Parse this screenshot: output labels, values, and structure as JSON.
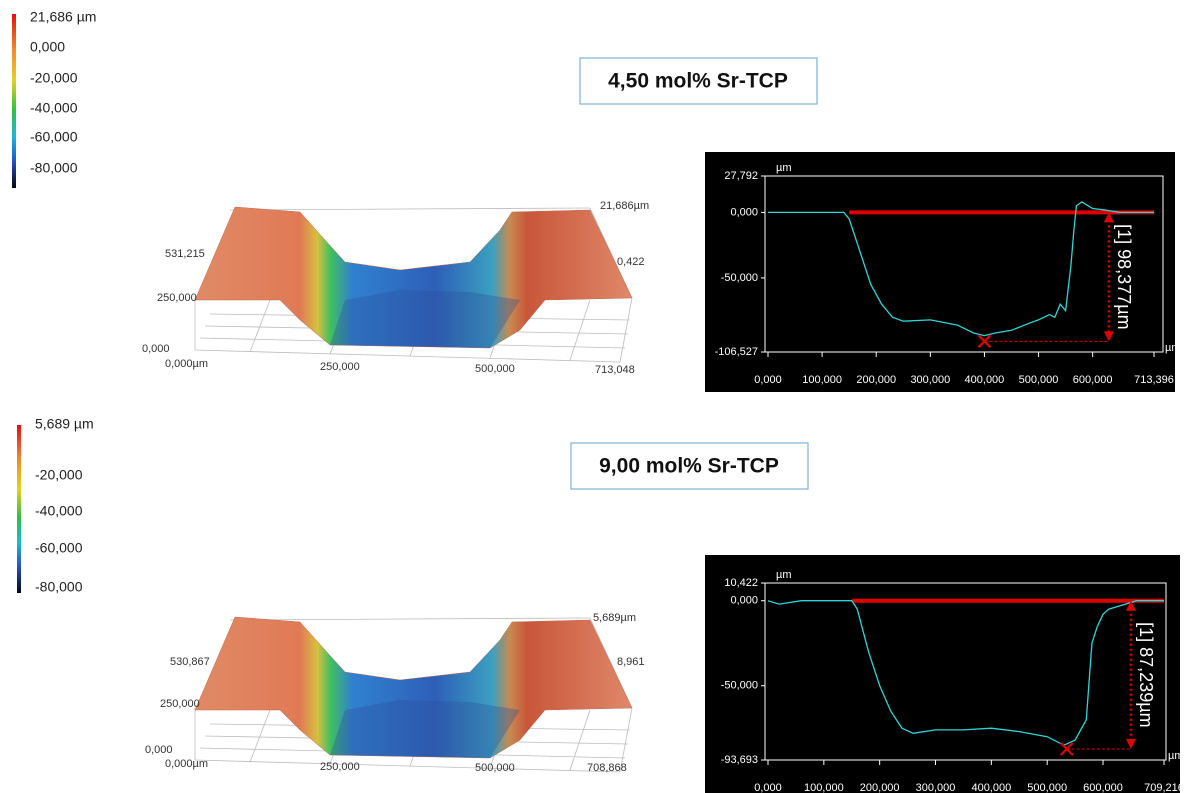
{
  "panels": [
    {
      "title": "4,50 mol% Sr-TCP",
      "colorbar": [
        "21,686 µm",
        "0,000",
        "-20,000",
        "-40,000",
        "-60,000",
        "-80,000"
      ],
      "surface_labels": [
        "531,215",
        "250,000",
        "0,000",
        "0,000µm",
        "250,000",
        "500,000",
        "713,048",
        "21,686µm",
        "0,422"
      ]
    },
    {
      "title": "9,00 mol% Sr-TCP",
      "colorbar": [
        "5,689 µm",
        "-20,000",
        "-40,000",
        "-60,000",
        "-80,000"
      ],
      "surface_labels": [
        "530,867",
        "250,000",
        "0,000",
        "0,000µm",
        "250,000",
        "500,000",
        "708,868",
        "5,689µm",
        "8,961"
      ]
    }
  ],
  "chart_data": [
    {
      "type": "line",
      "y_unit": "µm",
      "x_unit": "µm",
      "color": "#2fd6d6",
      "xlim": [
        0,
        713396
      ],
      "ylim": [
        -106.527,
        27.792
      ],
      "xticks": [
        {
          "value": 0,
          "label": "0,000"
        },
        {
          "value": 100000,
          "label": "100,000"
        },
        {
          "value": 200000,
          "label": "200,000"
        },
        {
          "value": 300000,
          "label": "300,000"
        },
        {
          "value": 400000,
          "label": "400,000"
        },
        {
          "value": 500000,
          "label": "500,000"
        },
        {
          "value": 600000,
          "label": "600,000"
        },
        {
          "value": 713396,
          "label": "713,396"
        }
      ],
      "yticks": [
        {
          "value": 27.792,
          "label": "27,792"
        },
        {
          "value": 0,
          "label": "0,000"
        },
        {
          "value": -50,
          "label": "-50,000"
        },
        {
          "value": -106.527,
          "label": "-106,527"
        }
      ],
      "x": [
        0,
        50000,
        100000,
        140000,
        150000,
        170000,
        190000,
        210000,
        230000,
        250000,
        300000,
        350000,
        380000,
        400000,
        420000,
        450000,
        480000,
        500000,
        520000,
        530000,
        540000,
        550000,
        560000,
        565000,
        570000,
        580000,
        600000,
        620000,
        650000,
        713396
      ],
      "values": [
        0,
        0,
        0,
        0,
        -5,
        -30,
        -55,
        -70,
        -80,
        -83,
        -82,
        -86,
        -92,
        -94,
        -92,
        -90,
        -85,
        -82,
        -78,
        -80,
        -70,
        -75,
        -40,
        -15,
        5,
        8,
        3,
        2,
        0,
        0
      ],
      "reference": {
        "y": 0,
        "x": [
          150000,
          713396
        ],
        "color": "#e00000"
      },
      "marker": {
        "x": 400000,
        "y": -98.377
      },
      "annotation": {
        "label": "[1] 98,377µm",
        "x": 630000,
        "y": [
          0,
          -98.377
        ]
      }
    },
    {
      "type": "line",
      "y_unit": "µm",
      "x_unit": "µm",
      "color": "#2fd6d6",
      "xlim": [
        0,
        709216
      ],
      "ylim": [
        -93.693,
        10.422
      ],
      "xticks": [
        {
          "value": 0,
          "label": "0,000"
        },
        {
          "value": 100000,
          "label": "100,000"
        },
        {
          "value": 200000,
          "label": "200,000"
        },
        {
          "value": 300000,
          "label": "300,000"
        },
        {
          "value": 400000,
          "label": "400,000"
        },
        {
          "value": 500000,
          "label": "500,000"
        },
        {
          "value": 600000,
          "label": "600,000"
        },
        {
          "value": 709216,
          "label": "709,216"
        }
      ],
      "yticks": [
        {
          "value": 10.422,
          "label": "10,422"
        },
        {
          "value": 0,
          "label": "0,000"
        },
        {
          "value": -50,
          "label": "-50,000"
        },
        {
          "value": -93.693,
          "label": "-93,693"
        }
      ],
      "x": [
        0,
        20000,
        60000,
        100000,
        150000,
        160000,
        180000,
        200000,
        220000,
        240000,
        260000,
        300000,
        350000,
        400000,
        450000,
        500000,
        530000,
        550000,
        570000,
        580000,
        590000,
        600000,
        610000,
        640000,
        660000,
        709216
      ],
      "values": [
        0,
        -2,
        0,
        0,
        0,
        -5,
        -30,
        -50,
        -65,
        -75,
        -78,
        -76,
        -76,
        -75,
        -77,
        -80,
        -85,
        -82,
        -70,
        -25,
        -15,
        -8,
        -5,
        -2,
        0,
        0
      ],
      "reference": {
        "y": 0,
        "x": [
          150000,
          709216
        ],
        "color": "#e00000"
      },
      "marker": {
        "x": 535000,
        "y": -87.239
      },
      "annotation": {
        "label": "[1] 87,239µm",
        "x": 650000,
        "y": [
          0,
          -87.239
        ]
      }
    }
  ]
}
